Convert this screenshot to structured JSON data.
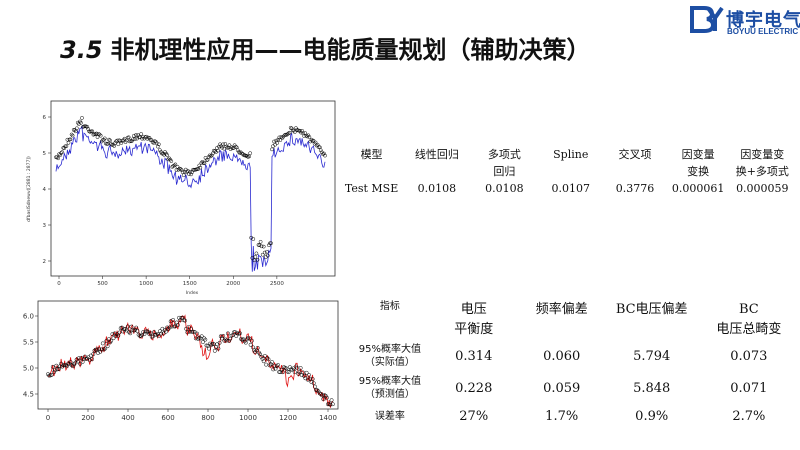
{
  "title": {
    "number": "3.5",
    "text": "非机理性应用——电能质量规划（辅助决策）"
  },
  "logo": {
    "cn": "博宇电气",
    "en": "BOYUU ELECTRIC",
    "color": "#1d4ea3"
  },
  "plots": {
    "top": {
      "ylabel": "dfbaslSdnewv([2881 : 2877])",
      "xlabel": "Index",
      "xticks": [
        "0",
        "500",
        "1000",
        "1500",
        "2000",
        "2500"
      ],
      "yticks": [
        "2",
        "3",
        "4",
        "5",
        "6"
      ]
    },
    "bottom": {
      "xticks": [
        "0",
        "200",
        "400",
        "600",
        "800",
        "1000",
        "1200",
        "1400"
      ],
      "yticks": [
        "4.5",
        "5.0",
        "5.5",
        "6.0"
      ]
    }
  },
  "table_top": {
    "headers": [
      "模型",
      "线性回归",
      "多项式\n回归",
      "Spline",
      "交叉项",
      "因变量\n变换",
      "因变量变\n换+多项式"
    ],
    "row": [
      "Test MSE",
      "0.0108",
      "0.0108",
      "0.0107",
      "0.3776",
      "0.000061",
      "0.000059"
    ]
  },
  "table_bottom": {
    "headers": [
      "指标",
      "电压\n平衡度",
      "频率偏差",
      "BC电压偏差",
      "BC\n电压总畸变"
    ],
    "rows": [
      [
        "95%概率大值\n（实际值）",
        "0.314",
        "0.060",
        "5.794",
        "0.073"
      ],
      [
        "95%概率大值\n（预测值）",
        "0.228",
        "0.059",
        "5.848",
        "0.071"
      ],
      [
        "误差率",
        "27%",
        "1.7%",
        "0.9%",
        "2.7%"
      ]
    ]
  },
  "colors": {
    "actual": "#000000",
    "pred_top": "#2a2ad0",
    "pred_bottom": "#e01010"
  }
}
